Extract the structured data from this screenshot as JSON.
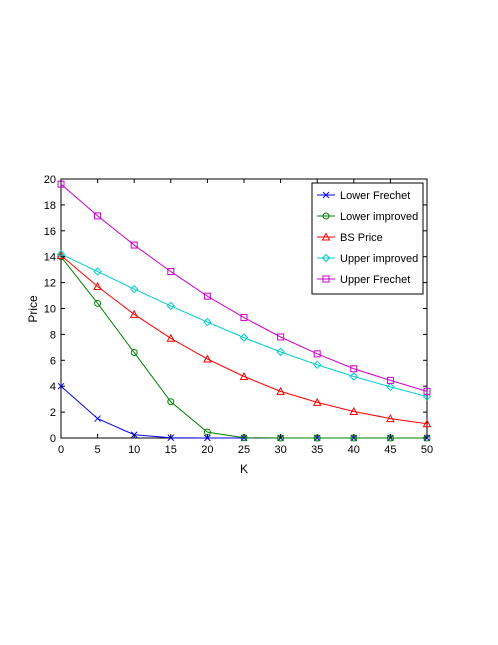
{
  "chart_data": {
    "type": "line",
    "title": "",
    "xlabel": "K",
    "ylabel": "Price",
    "xlim": [
      0,
      50
    ],
    "ylim": [
      0,
      20
    ],
    "xticks": [
      0,
      5,
      10,
      15,
      20,
      25,
      30,
      35,
      40,
      45,
      50
    ],
    "yticks": [
      0,
      2,
      4,
      6,
      8,
      10,
      12,
      14,
      16,
      18,
      20
    ],
    "grid": false,
    "legend_position": "top-right",
    "x": [
      0,
      5,
      10,
      15,
      20,
      25,
      30,
      35,
      40,
      45,
      50
    ],
    "series": [
      {
        "name": "Lower Frechet",
        "color": "#0000ff",
        "marker": "x",
        "values": [
          4.0,
          1.5,
          0.25,
          0.02,
          0.0,
          0.0,
          0.0,
          0.0,
          0.0,
          0.0,
          0.0
        ]
      },
      {
        "name": "Lower improved",
        "color": "#008000",
        "marker": "circle",
        "values": [
          14.0,
          10.4,
          6.6,
          2.8,
          0.45,
          0.02,
          0.0,
          0.0,
          0.0,
          0.0,
          0.0
        ]
      },
      {
        "name": "BS Price",
        "color": "#ff0000",
        "marker": "triangle",
        "values": [
          14.1,
          11.7,
          9.55,
          7.7,
          6.1,
          4.75,
          3.6,
          2.75,
          2.05,
          1.5,
          1.1
        ]
      },
      {
        "name": "Upper improved",
        "color": "#00cccc",
        "marker": "diamond",
        "values": [
          14.2,
          12.85,
          11.5,
          10.2,
          8.95,
          7.75,
          6.65,
          5.65,
          4.75,
          3.95,
          3.2
        ]
      },
      {
        "name": "Upper Frechet",
        "color": "#cc00cc",
        "marker": "square",
        "values": [
          19.6,
          17.15,
          14.9,
          12.85,
          10.95,
          9.3,
          7.8,
          6.5,
          5.35,
          4.45,
          3.6
        ]
      }
    ]
  }
}
